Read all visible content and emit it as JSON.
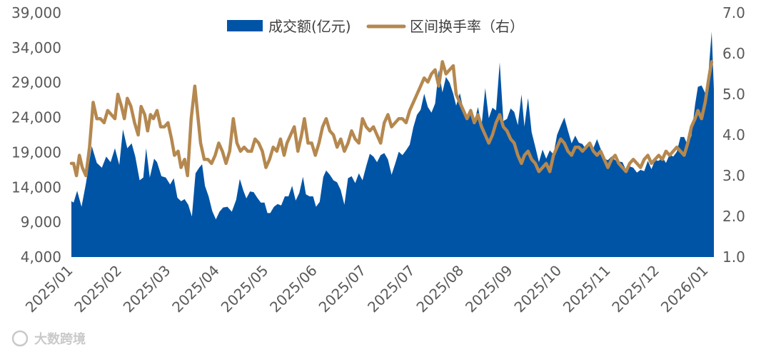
{
  "chart_data": {
    "type": "area+line",
    "title": "",
    "legend": {
      "placement": "top-center",
      "entries": [
        {
          "label": "成交额(亿元)",
          "kind": "area",
          "color": "#0054a6"
        },
        {
          "label": "区间换手率（右）",
          "kind": "line",
          "color": "#b5884f"
        }
      ]
    },
    "y_left": {
      "ticks": [
        "39,000",
        "34,000",
        "29,000",
        "24,000",
        "19,000",
        "14,000",
        "9,000",
        "4,000"
      ],
      "range": [
        4000,
        39000
      ]
    },
    "y_right": {
      "ticks": [
        "7.0",
        "6.0",
        "5.0",
        "4.0",
        "3.0",
        "2.0",
        "1.0"
      ],
      "range": [
        1.0,
        7.0
      ]
    },
    "x_labels": [
      "2025/01",
      "2025/02",
      "2025/03",
      "2025/04",
      "2025/05",
      "2025/06",
      "2025/07",
      "2025/07",
      "2025/08",
      "2025/09",
      "2025/10",
      "2025/11",
      "2025/12",
      "2026/01"
    ],
    "turnover": [
      [
        0,
        12000
      ],
      [
        3,
        11800
      ],
      [
        8,
        13500
      ],
      [
        14,
        11200
      ],
      [
        20,
        14500
      ],
      [
        28,
        19900
      ],
      [
        35,
        17500
      ],
      [
        42,
        16800
      ],
      [
        48,
        18400
      ],
      [
        54,
        17600
      ],
      [
        60,
        19600
      ],
      [
        66,
        17200
      ],
      [
        71,
        22300
      ],
      [
        77,
        19600
      ],
      [
        83,
        20300
      ],
      [
        88,
        18400
      ],
      [
        94,
        15000
      ],
      [
        99,
        15400
      ],
      [
        103,
        19600
      ],
      [
        108,
        15400
      ],
      [
        114,
        18100
      ],
      [
        118,
        17600
      ],
      [
        124,
        15600
      ],
      [
        130,
        15400
      ],
      [
        136,
        14400
      ],
      [
        141,
        15300
      ],
      [
        146,
        12500
      ],
      [
        151,
        12000
      ],
      [
        156,
        12300
      ],
      [
        161,
        11500
      ],
      [
        166,
        9800
      ],
      [
        171,
        16000
      ],
      [
        176,
        16800
      ],
      [
        180,
        17300
      ],
      [
        184,
        14200
      ],
      [
        189,
        12700
      ],
      [
        194,
        10600
      ],
      [
        199,
        9400
      ],
      [
        204,
        10500
      ],
      [
        209,
        11100
      ],
      [
        215,
        11200
      ],
      [
        221,
        10500
      ],
      [
        227,
        12200
      ],
      [
        232,
        15200
      ],
      [
        237,
        13500
      ],
      [
        241,
        12400
      ],
      [
        246,
        13400
      ],
      [
        251,
        13300
      ],
      [
        256,
        12500
      ],
      [
        261,
        11800
      ],
      [
        266,
        11800
      ],
      [
        270,
        10300
      ],
      [
        274,
        10300
      ],
      [
        279,
        11200
      ],
      [
        284,
        11600
      ],
      [
        289,
        11400
      ],
      [
        294,
        12700
      ],
      [
        299,
        12700
      ],
      [
        304,
        14200
      ],
      [
        309,
        12100
      ],
      [
        314,
        13200
      ],
      [
        319,
        15500
      ],
      [
        323,
        13000
      ],
      [
        328,
        12700
      ],
      [
        333,
        12700
      ],
      [
        337,
        11200
      ],
      [
        342,
        11900
      ],
      [
        347,
        15500
      ],
      [
        351,
        16400
      ],
      [
        356,
        15800
      ],
      [
        361,
        15000
      ],
      [
        366,
        14700
      ],
      [
        371,
        13600
      ],
      [
        376,
        11500
      ],
      [
        381,
        15300
      ],
      [
        386,
        15600
      ],
      [
        391,
        14600
      ],
      [
        396,
        16000
      ],
      [
        401,
        15000
      ],
      [
        406,
        17000
      ],
      [
        411,
        18800
      ],
      [
        416,
        18400
      ],
      [
        421,
        17600
      ],
      [
        426,
        18600
      ],
      [
        431,
        18900
      ],
      [
        436,
        18000
      ],
      [
        441,
        15800
      ],
      [
        446,
        17400
      ],
      [
        451,
        19100
      ],
      [
        456,
        18600
      ],
      [
        461,
        19300
      ],
      [
        466,
        20100
      ],
      [
        471,
        22600
      ],
      [
        476,
        24400
      ],
      [
        481,
        25100
      ],
      [
        486,
        27400
      ],
      [
        491,
        25500
      ],
      [
        496,
        24700
      ],
      [
        501,
        26000
      ],
      [
        506,
        30800
      ],
      [
        511,
        27600
      ],
      [
        516,
        29800
      ],
      [
        521,
        29000
      ],
      [
        526,
        27400
      ],
      [
        530,
        25700
      ],
      [
        535,
        27500
      ],
      [
        540,
        25100
      ],
      [
        545,
        24300
      ],
      [
        550,
        25300
      ],
      [
        555,
        23300
      ],
      [
        560,
        25500
      ],
      [
        565,
        22900
      ],
      [
        570,
        28200
      ],
      [
        575,
        23900
      ],
      [
        580,
        25400
      ],
      [
        585,
        25000
      ],
      [
        590,
        31900
      ],
      [
        595,
        23500
      ],
      [
        600,
        23800
      ],
      [
        605,
        25300
      ],
      [
        610,
        24800
      ],
      [
        615,
        22900
      ],
      [
        620,
        27300
      ],
      [
        624,
        22700
      ],
      [
        629,
        26800
      ],
      [
        634,
        21900
      ],
      [
        639,
        19800
      ],
      [
        644,
        17600
      ],
      [
        649,
        19400
      ],
      [
        654,
        18100
      ],
      [
        659,
        19300
      ],
      [
        664,
        18700
      ],
      [
        669,
        21500
      ],
      [
        674,
        22800
      ],
      [
        679,
        24000
      ],
      [
        684,
        22100
      ],
      [
        689,
        20300
      ],
      [
        694,
        21400
      ],
      [
        699,
        20400
      ],
      [
        704,
        20200
      ],
      [
        709,
        19400
      ],
      [
        714,
        20300
      ],
      [
        719,
        19600
      ],
      [
        724,
        20900
      ],
      [
        729,
        19500
      ],
      [
        734,
        18100
      ],
      [
        739,
        17900
      ],
      [
        744,
        18400
      ],
      [
        749,
        17900
      ],
      [
        754,
        17700
      ],
      [
        759,
        17600
      ],
      [
        764,
        16500
      ],
      [
        769,
        17000
      ],
      [
        774,
        16800
      ],
      [
        779,
        16100
      ],
      [
        784,
        16500
      ],
      [
        789,
        16300
      ],
      [
        794,
        17800
      ],
      [
        799,
        16600
      ],
      [
        804,
        17900
      ],
      [
        809,
        17800
      ],
      [
        814,
        18300
      ],
      [
        819,
        17500
      ],
      [
        824,
        18700
      ],
      [
        829,
        18400
      ],
      [
        834,
        19100
      ],
      [
        839,
        21200
      ],
      [
        844,
        21200
      ],
      [
        849,
        20000
      ],
      [
        854,
        21400
      ],
      [
        859,
        25800
      ],
      [
        863,
        28400
      ],
      [
        868,
        28600
      ],
      [
        873,
        27500
      ],
      [
        878,
        31000
      ],
      [
        882,
        36300
      ],
      [
        885,
        28000
      ]
    ],
    "turnover_rate": [
      [
        0,
        3.3
      ],
      [
        3,
        3.3
      ],
      [
        7,
        3.0
      ],
      [
        11,
        3.5
      ],
      [
        15,
        3.2
      ],
      [
        20,
        3.0
      ],
      [
        25,
        3.7
      ],
      [
        30,
        4.8
      ],
      [
        35,
        4.4
      ],
      [
        40,
        4.4
      ],
      [
        45,
        4.3
      ],
      [
        50,
        4.6
      ],
      [
        55,
        4.5
      ],
      [
        60,
        4.4
      ],
      [
        64,
        5.0
      ],
      [
        69,
        4.7
      ],
      [
        73,
        4.4
      ],
      [
        77,
        4.9
      ],
      [
        82,
        4.7
      ],
      [
        87,
        4.3
      ],
      [
        92,
        4.0
      ],
      [
        96,
        4.7
      ],
      [
        101,
        4.5
      ],
      [
        105,
        4.1
      ],
      [
        109,
        4.5
      ],
      [
        113,
        4.4
      ],
      [
        118,
        4.6
      ],
      [
        123,
        4.2
      ],
      [
        128,
        4.2
      ],
      [
        133,
        4.3
      ],
      [
        138,
        3.9
      ],
      [
        142,
        3.5
      ],
      [
        147,
        3.6
      ],
      [
        151,
        3.2
      ],
      [
        156,
        3.4
      ],
      [
        160,
        3.0
      ],
      [
        165,
        4.4
      ],
      [
        170,
        5.2
      ],
      [
        174,
        4.5
      ],
      [
        178,
        3.8
      ],
      [
        183,
        3.4
      ],
      [
        188,
        3.4
      ],
      [
        193,
        3.3
      ],
      [
        198,
        3.5
      ],
      [
        203,
        3.8
      ],
      [
        208,
        3.6
      ],
      [
        213,
        3.3
      ],
      [
        218,
        3.6
      ],
      [
        223,
        4.4
      ],
      [
        228,
        3.8
      ],
      [
        233,
        3.6
      ],
      [
        238,
        3.7
      ],
      [
        243,
        3.6
      ],
      [
        248,
        3.6
      ],
      [
        253,
        3.9
      ],
      [
        258,
        3.8
      ],
      [
        263,
        3.6
      ],
      [
        268,
        3.2
      ],
      [
        273,
        3.4
      ],
      [
        278,
        3.7
      ],
      [
        283,
        3.6
      ],
      [
        288,
        3.9
      ],
      [
        293,
        3.5
      ],
      [
        297,
        3.8
      ],
      [
        302,
        4.0
      ],
      [
        307,
        4.2
      ],
      [
        312,
        3.6
      ],
      [
        317,
        4.0
      ],
      [
        321,
        4.4
      ],
      [
        326,
        3.8
      ],
      [
        331,
        3.8
      ],
      [
        336,
        3.5
      ],
      [
        341,
        3.8
      ],
      [
        346,
        4.2
      ],
      [
        351,
        4.4
      ],
      [
        356,
        4.1
      ],
      [
        361,
        4.0
      ],
      [
        366,
        3.7
      ],
      [
        371,
        3.9
      ],
      [
        376,
        3.6
      ],
      [
        381,
        3.8
      ],
      [
        386,
        4.1
      ],
      [
        391,
        3.9
      ],
      [
        396,
        3.8
      ],
      [
        401,
        4.4
      ],
      [
        406,
        4.2
      ],
      [
        411,
        4.1
      ],
      [
        416,
        4.2
      ],
      [
        421,
        4.0
      ],
      [
        426,
        3.8
      ],
      [
        431,
        4.3
      ],
      [
        436,
        4.5
      ],
      [
        441,
        4.2
      ],
      [
        446,
        4.3
      ],
      [
        451,
        4.4
      ],
      [
        456,
        4.4
      ],
      [
        461,
        4.3
      ],
      [
        466,
        4.6
      ],
      [
        471,
        4.8
      ],
      [
        476,
        5.0
      ],
      [
        481,
        5.2
      ],
      [
        486,
        5.4
      ],
      [
        491,
        5.3
      ],
      [
        496,
        5.5
      ],
      [
        501,
        5.6
      ],
      [
        506,
        5.2
      ],
      [
        511,
        5.8
      ],
      [
        516,
        5.5
      ],
      [
        521,
        5.6
      ],
      [
        526,
        5.7
      ],
      [
        530,
        5.0
      ],
      [
        535,
        4.8
      ],
      [
        540,
        4.6
      ],
      [
        545,
        4.4
      ],
      [
        550,
        4.6
      ],
      [
        555,
        4.3
      ],
      [
        560,
        4.5
      ],
      [
        565,
        4.2
      ],
      [
        570,
        4.0
      ],
      [
        575,
        3.8
      ],
      [
        580,
        4.0
      ],
      [
        585,
        4.3
      ],
      [
        590,
        4.5
      ],
      [
        595,
        4.2
      ],
      [
        600,
        4.1
      ],
      [
        605,
        3.9
      ],
      [
        610,
        3.8
      ],
      [
        615,
        3.5
      ],
      [
        620,
        3.3
      ],
      [
        624,
        3.5
      ],
      [
        629,
        3.6
      ],
      [
        634,
        3.4
      ],
      [
        639,
        3.3
      ],
      [
        644,
        3.1
      ],
      [
        649,
        3.2
      ],
      [
        654,
        3.3
      ],
      [
        659,
        3.1
      ],
      [
        664,
        3.5
      ],
      [
        669,
        3.7
      ],
      [
        674,
        3.9
      ],
      [
        679,
        3.8
      ],
      [
        684,
        3.6
      ],
      [
        689,
        3.5
      ],
      [
        694,
        3.7
      ],
      [
        699,
        3.7
      ],
      [
        704,
        3.6
      ],
      [
        709,
        3.7
      ],
      [
        714,
        3.8
      ],
      [
        719,
        3.6
      ],
      [
        724,
        3.5
      ],
      [
        729,
        3.6
      ],
      [
        734,
        3.4
      ],
      [
        739,
        3.2
      ],
      [
        744,
        3.4
      ],
      [
        749,
        3.5
      ],
      [
        754,
        3.3
      ],
      [
        759,
        3.2
      ],
      [
        764,
        3.1
      ],
      [
        769,
        3.3
      ],
      [
        774,
        3.4
      ],
      [
        779,
        3.3
      ],
      [
        784,
        3.2
      ],
      [
        789,
        3.4
      ],
      [
        794,
        3.5
      ],
      [
        799,
        3.3
      ],
      [
        804,
        3.4
      ],
      [
        809,
        3.5
      ],
      [
        814,
        3.4
      ],
      [
        819,
        3.6
      ],
      [
        824,
        3.5
      ],
      [
        829,
        3.6
      ],
      [
        834,
        3.7
      ],
      [
        839,
        3.6
      ],
      [
        844,
        3.5
      ],
      [
        849,
        3.8
      ],
      [
        854,
        4.2
      ],
      [
        859,
        4.4
      ],
      [
        863,
        4.6
      ],
      [
        868,
        4.4
      ],
      [
        873,
        4.8
      ],
      [
        878,
        5.4
      ],
      [
        882,
        5.8
      ]
    ]
  },
  "watermark": {
    "text": "大数跨境"
  }
}
